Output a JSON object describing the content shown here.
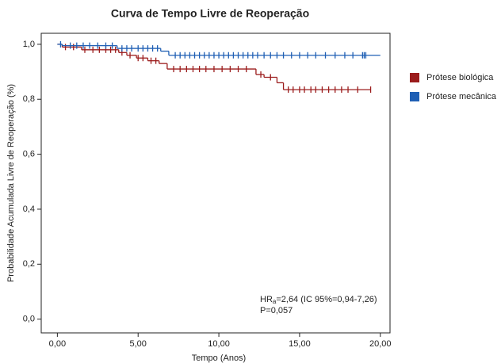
{
  "chart_data": {
    "type": "step",
    "title": "Curva de Tempo Livre de Reoperação",
    "x_label": "Tempo (Anos)",
    "y_label": "Probabilidade Acumulada Livre de Reoperação (%)",
    "xlim": [
      -1,
      20.6
    ],
    "ylim": [
      -0.05,
      1.04
    ],
    "xticks": [
      {
        "value": 0,
        "label": "0,00"
      },
      {
        "value": 5,
        "label": "5,00"
      },
      {
        "value": 10,
        "label": "10,00"
      },
      {
        "value": 15,
        "label": "15,00"
      },
      {
        "value": 20,
        "label": "20,00"
      }
    ],
    "yticks": [
      {
        "value": 0,
        "label": "0,0"
      },
      {
        "value": 0.2,
        "label": "0,2"
      },
      {
        "value": 0.4,
        "label": "0,4"
      },
      {
        "value": 0.6,
        "label": "0,6"
      },
      {
        "value": 0.8,
        "label": "0,8"
      },
      {
        "value": 1.0,
        "label": "1,0"
      }
    ],
    "series": [
      {
        "name": "Prótese biológica",
        "color": "#9b1c1c",
        "x": [
          0,
          0.3,
          1.5,
          3.8,
          4.3,
          4.9,
          5.6,
          6.3,
          6.8,
          12.3,
          12.8,
          13.6,
          14.0,
          19.4
        ],
        "values": [
          1.0,
          0.99,
          0.98,
          0.97,
          0.96,
          0.95,
          0.94,
          0.93,
          0.91,
          0.89,
          0.88,
          0.86,
          0.835,
          0.835
        ],
        "censored": [
          0.5,
          1.0,
          1.7,
          2.2,
          2.6,
          3.0,
          3.3,
          3.6,
          4.0,
          4.5,
          5.0,
          5.3,
          5.8,
          6.1,
          7.2,
          7.6,
          8.0,
          8.4,
          8.8,
          9.2,
          9.7,
          10.2,
          10.7,
          11.2,
          11.7,
          12.6,
          13.2,
          14.3,
          14.6,
          15.0,
          15.3,
          15.7,
          16.0,
          16.4,
          16.8,
          17.2,
          17.6,
          18.0,
          18.6,
          19.4
        ]
      },
      {
        "name": "Prótese mecânica",
        "color": "#1f5fb4",
        "x": [
          0,
          0.3,
          3.7,
          6.4,
          6.9,
          20
        ],
        "values": [
          1.0,
          0.995,
          0.985,
          0.975,
          0.96,
          0.96
        ],
        "censored": [
          0.2,
          0.8,
          1.2,
          1.6,
          2.0,
          2.5,
          3.0,
          3.4,
          4.0,
          4.3,
          4.6,
          5.0,
          5.3,
          5.6,
          5.9,
          6.2,
          7.3,
          7.6,
          7.9,
          8.2,
          8.5,
          8.8,
          9.1,
          9.4,
          9.7,
          10.0,
          10.3,
          10.6,
          10.9,
          11.2,
          11.5,
          11.8,
          12.1,
          12.4,
          12.8,
          13.2,
          13.6,
          14.0,
          14.5,
          15.0,
          15.5,
          16.0,
          16.6,
          17.2,
          17.8,
          18.3,
          18.9,
          19.0,
          19.1
        ]
      }
    ],
    "annotation": {
      "hr": "HR",
      "hr_sub": "a",
      "hr_rest": "=2,64 (IC 95%=0,94-7,26)",
      "p": "P=0,057"
    }
  }
}
